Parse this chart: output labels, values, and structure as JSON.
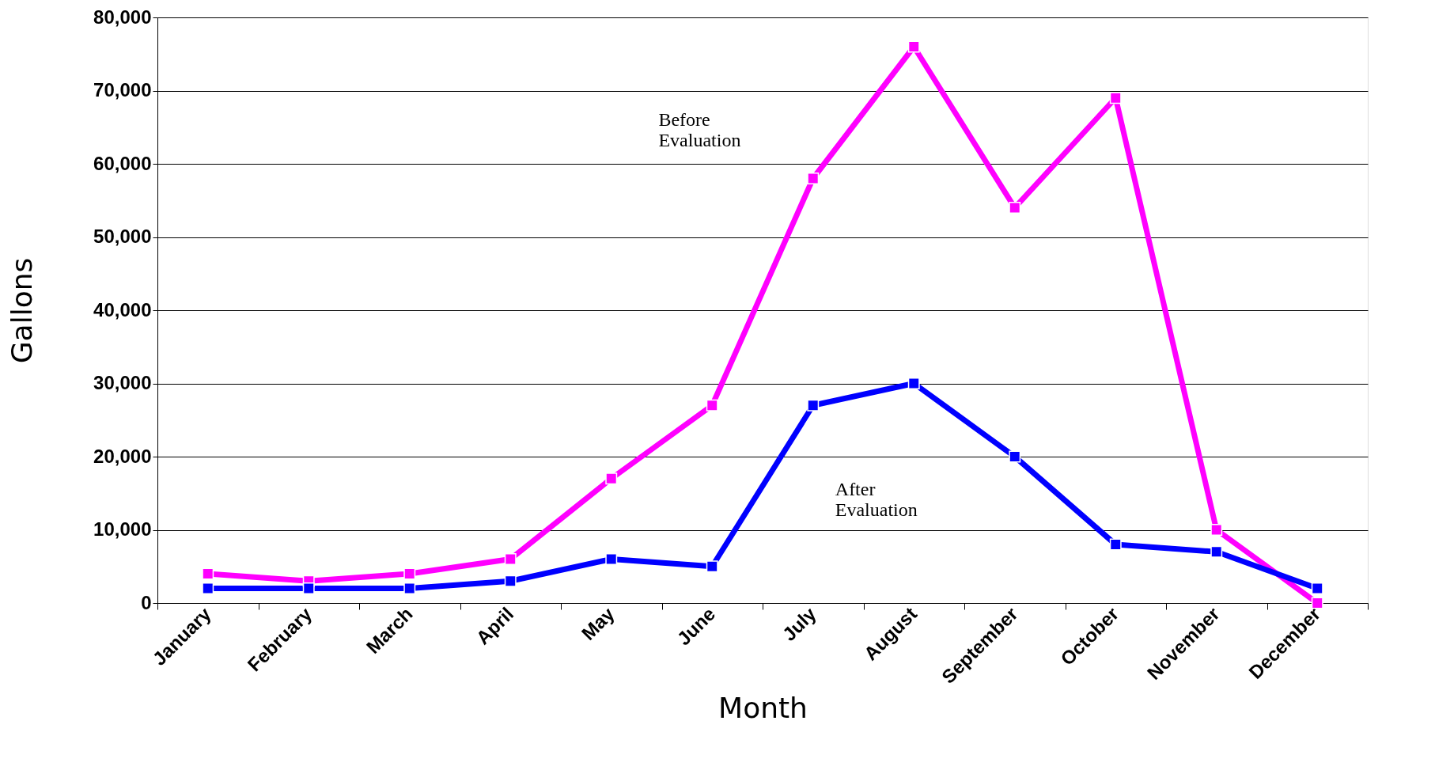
{
  "chart_data": {
    "type": "line",
    "xlabel": "Month",
    "ylabel": "Gallons",
    "categories": [
      "January",
      "February",
      "March",
      "April",
      "May",
      "June",
      "July",
      "August",
      "September",
      "October",
      "November",
      "December"
    ],
    "series": [
      {
        "color": "#ff00ff",
        "values": [
          4000,
          3000,
          4000,
          6000,
          17000,
          27000,
          58000,
          76000,
          54000,
          69000,
          10000,
          0
        ]
      },
      {
        "color": "#0000ff",
        "values": [
          2000,
          2000,
          2000,
          3000,
          6000,
          5000,
          27000,
          30000,
          20000,
          8000,
          7000,
          2000
        ]
      }
    ],
    "ylim": [
      0,
      80000
    ],
    "yticks": [
      {
        "value": 0,
        "label": "0"
      },
      {
        "value": 10000,
        "label": "10,000"
      },
      {
        "value": 20000,
        "label": "20,000"
      },
      {
        "value": 30000,
        "label": "30,000"
      },
      {
        "value": 40000,
        "label": "40,000"
      },
      {
        "value": 50000,
        "label": "50,000"
      },
      {
        "value": 60000,
        "label": "60,000"
      },
      {
        "value": 70000,
        "label": "70,000"
      },
      {
        "value": 80000,
        "label": "80,000"
      }
    ],
    "annotations": [
      "Before\nEvaluation",
      "After\nEvaluation"
    ],
    "grid": "y",
    "legend": false,
    "marker": "square",
    "line_style": "solid"
  }
}
